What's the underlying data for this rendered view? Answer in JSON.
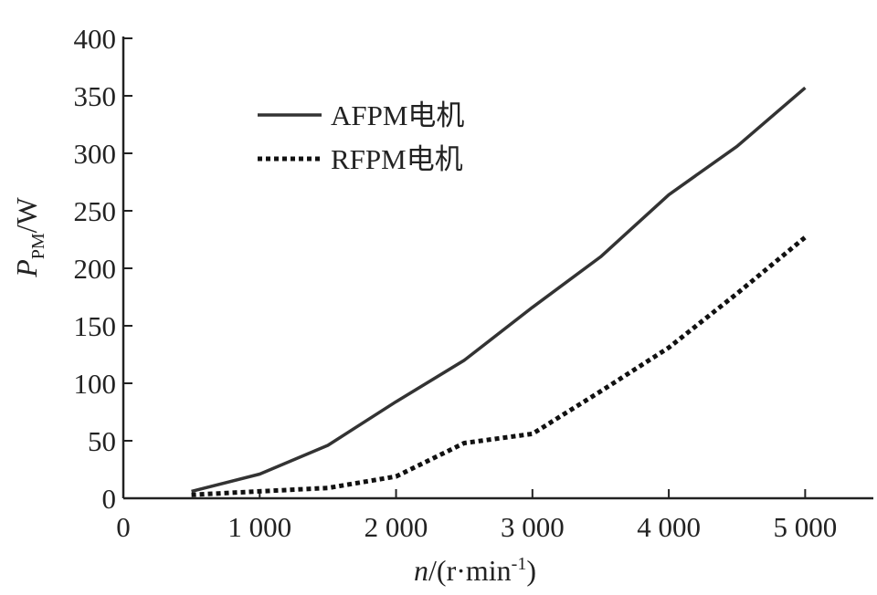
{
  "chart_data": {
    "type": "line",
    "title": "",
    "xlabel": {
      "var": "n",
      "unit_prefix": "/(r·min",
      "sup": "-1",
      "unit_suffix": ")"
    },
    "ylabel": {
      "var": "P",
      "sub": "PM",
      "unit": "/W"
    },
    "xlim": [
      0,
      5500
    ],
    "ylim": [
      0,
      400
    ],
    "x_ticks": [
      {
        "value": 0,
        "label": "0"
      },
      {
        "value": 1000,
        "label": "1 000"
      },
      {
        "value": 2000,
        "label": "2 000"
      },
      {
        "value": 3000,
        "label": "3 000"
      },
      {
        "value": 4000,
        "label": "4 000"
      },
      {
        "value": 5000,
        "label": "5 000"
      }
    ],
    "y_ticks": [
      {
        "value": 0,
        "label": "0"
      },
      {
        "value": 50,
        "label": "50"
      },
      {
        "value": 100,
        "label": "100"
      },
      {
        "value": 150,
        "label": "150"
      },
      {
        "value": 200,
        "label": "200"
      },
      {
        "value": 250,
        "label": "250"
      },
      {
        "value": 300,
        "label": "300"
      },
      {
        "value": 350,
        "label": "350"
      },
      {
        "value": 400,
        "label": "400"
      }
    ],
    "legend_position": "top-left",
    "grid": false,
    "series": [
      {
        "name": "AFPM电机",
        "style": "solid",
        "color": "#333333",
        "x": [
          500,
          1000,
          1500,
          2000,
          2500,
          3000,
          3500,
          4000,
          4500,
          5000
        ],
        "y": [
          6,
          21,
          46,
          84,
          120,
          166,
          210,
          264,
          306,
          357
        ]
      },
      {
        "name": "RFPM电机",
        "style": "dotted",
        "color": "#111111",
        "x": [
          500,
          1000,
          1500,
          2000,
          2500,
          3000,
          3500,
          4000,
          4500,
          5000
        ],
        "y": [
          3,
          6,
          9,
          19,
          48,
          56,
          93,
          131,
          178,
          227
        ]
      }
    ]
  }
}
